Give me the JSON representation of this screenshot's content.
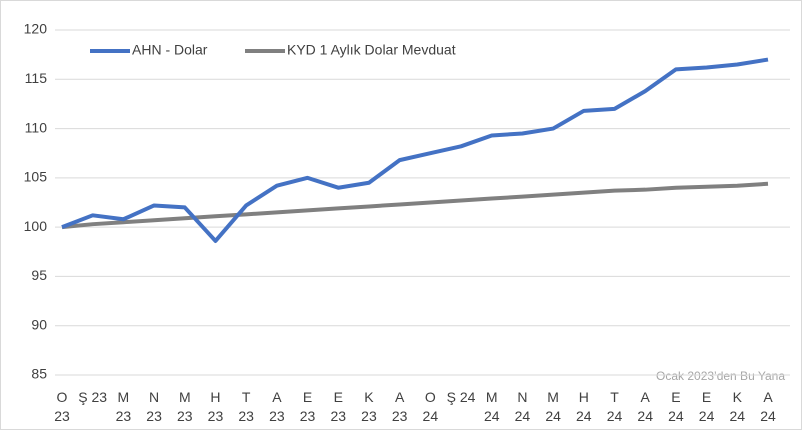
{
  "chart_data": {
    "type": "line",
    "categories": [
      "O\n23",
      "Ş 23",
      "M\n23",
      "N\n23",
      "M\n23",
      "H\n23",
      "T\n23",
      "A\n23",
      "E\n23",
      "E\n23",
      "K\n23",
      "A\n23",
      "O\n24",
      "Ş 24",
      "M\n24",
      "N\n24",
      "M\n24",
      "H\n24",
      "T\n24",
      "A\n24",
      "E\n24",
      "E\n24",
      "K\n24",
      "A\n24"
    ],
    "series": [
      {
        "name": "AHN - Dolar",
        "color": "#4472c4",
        "values": [
          100,
          101.2,
          100.8,
          102.2,
          102,
          98.6,
          102.2,
          104.2,
          105,
          104,
          104.5,
          106.8,
          107.5,
          108.2,
          109.3,
          109.5,
          110,
          111.8,
          112,
          113.8,
          116,
          116.2,
          116.5,
          117
        ]
      },
      {
        "name": "KYD 1 Aylık Dolar Mevduat",
        "color": "#808080",
        "values": [
          100,
          100.3,
          100.5,
          100.7,
          100.9,
          101.1,
          101.3,
          101.5,
          101.7,
          101.9,
          102.1,
          102.3,
          102.5,
          102.7,
          102.9,
          103.1,
          103.3,
          103.5,
          103.7,
          103.8,
          104,
          104.1,
          104.2,
          104.4
        ]
      }
    ],
    "ylim": [
      85,
      120
    ],
    "yticks": [
      85,
      90,
      95,
      100,
      105,
      110,
      115,
      120
    ],
    "grid": true,
    "legend": "top-left",
    "annotation": "Ocak 2023’den Bu Yana"
  }
}
